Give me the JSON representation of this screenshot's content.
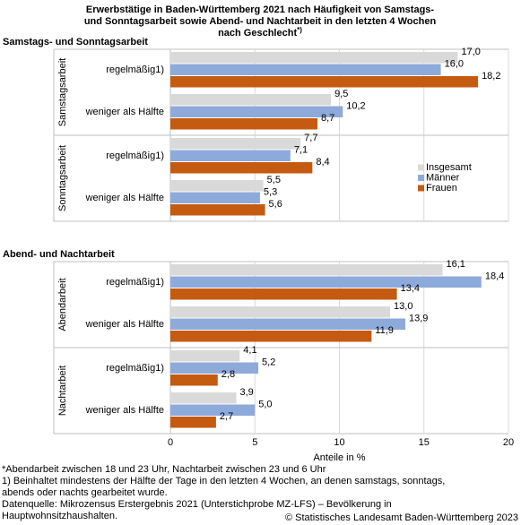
{
  "chart_data": {
    "type": "bar",
    "orientation": "horizontal",
    "title": [
      "Erwerbstätige in Baden-Württemberg 2021 nach Häufigkeit von Samstags-",
      "und Sonntagsarbeit sowie Abend- und Nachtarbeit in den letzten 4 Wochen",
      "nach Geschlecht"
    ],
    "title_note": "*)",
    "sections": [
      {
        "label": "Samstags- und Sonntagsarbeit",
        "groups": [
          {
            "label": "Samstagsarbeit",
            "categories": [
              "regelmäßig1)",
              "weniger als Hälfte"
            ]
          },
          {
            "label": "Sonntagsarbeit",
            "categories": [
              "regelmäßig1)",
              "weniger als Hälfte"
            ]
          }
        ]
      },
      {
        "label": "Abend- und Nachtarbeit",
        "groups": [
          {
            "label": "Abendarbeit",
            "categories": [
              "regelmäßig1)",
              "weniger als Hälfte"
            ]
          },
          {
            "label": "Nachtarbeit",
            "categories": [
              "regelmäßig1)",
              "weniger als Hälfte"
            ]
          }
        ]
      }
    ],
    "series": [
      {
        "name": "Insgesamt",
        "color": "#d9d9d9",
        "values": [
          17.0,
          9.5,
          7.7,
          5.5,
          16.1,
          13.0,
          4.1,
          3.9
        ],
        "value_labels": [
          "17,0",
          "9,5",
          "7,7",
          "5,5",
          "16,1",
          "13,0",
          "4,1",
          "3,9"
        ]
      },
      {
        "name": "Männer",
        "color": "#8eaadb",
        "values": [
          16.0,
          10.2,
          7.1,
          5.3,
          18.4,
          13.9,
          5.2,
          5.0
        ],
        "value_labels": [
          "16,0",
          "10,2",
          "7,1",
          "5,3",
          "18,4",
          "13,9",
          "5,2",
          "5,0"
        ]
      },
      {
        "name": "Frauen",
        "color": "#c55a11",
        "values": [
          18.2,
          8.7,
          8.4,
          5.6,
          13.4,
          11.9,
          2.8,
          2.7
        ],
        "value_labels": [
          "18,2",
          "8,7",
          "8,4",
          "5,6",
          "13,4",
          "11,9",
          "2,8",
          "2,7"
        ]
      }
    ],
    "xlim": [
      0,
      20
    ],
    "xticks": [
      0,
      5,
      10,
      15,
      20
    ],
    "xlabel": "Anteile in %",
    "grid": true,
    "legend": "right",
    "footnotes": [
      "*Abendarbeit zwischen 18 und 23 Uhr, Nachtarbeit zwischen 23 und 6 Uhr",
      "1) Beinhaltet mindestens der Hälfte der Tage in den letzten 4 Wochen, an denen samstags, sonntags,",
      "abends oder nachts gearbeitet wurde.",
      "Datenquelle: Mikrozensus Erstergebnis 2021 (Unterstichprobe MZ-LFS) – Bevölkerung in",
      "Hauptwohnsitzhaushalten."
    ],
    "copyright": "© Statistisches Landesamt Baden-Württemberg 2023"
  }
}
